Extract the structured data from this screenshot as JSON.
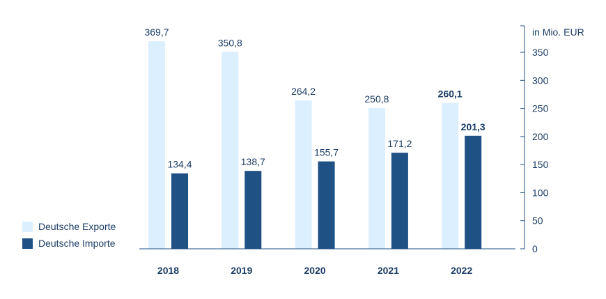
{
  "chart_data": {
    "type": "bar",
    "categories": [
      "2018",
      "2019",
      "2020",
      "2021",
      "2022"
    ],
    "series": [
      {
        "name": "Deutsche Exporte",
        "values": [
          369.7,
          350.8,
          264.2,
          250.8,
          260.1
        ],
        "color": "#dcefff",
        "labels": [
          "369,7",
          "350,8",
          "264,2",
          "250,8",
          "260,1"
        ]
      },
      {
        "name": "Deutsche Importe",
        "values": [
          134.4,
          138.7,
          155.7,
          171.2,
          201.3
        ],
        "color": "#1f5185",
        "labels": [
          "134,4",
          "138,7",
          "155,7",
          "171,2",
          "201,3"
        ]
      }
    ],
    "bold_label_index": 4,
    "ylabel": "in Mio. EUR",
    "ylim": [
      0,
      400
    ],
    "yticks": [
      0,
      50,
      100,
      150,
      200,
      250,
      300,
      350
    ],
    "grid": false,
    "y_axis_side": "right",
    "legend_position": "bottom-left"
  }
}
